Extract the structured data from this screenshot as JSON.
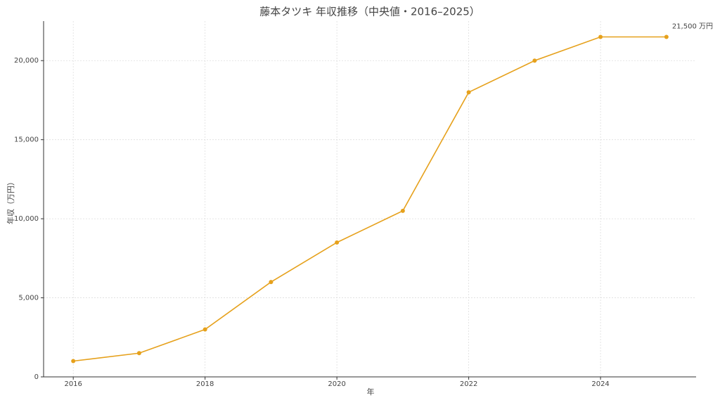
{
  "chart_data": {
    "type": "line",
    "title": "藤本タツキ 年収推移（中央値・2016–2025）",
    "x_label": "年",
    "y_label": "年収（万円）",
    "x": [
      2016,
      2017,
      2018,
      2019,
      2020,
      2021,
      2022,
      2023,
      2024,
      2025
    ],
    "series": [
      {
        "name": "年収",
        "color": "#e6a11c",
        "values": [
          1000,
          1500,
          3000,
          6000,
          8500,
          10500,
          18000,
          20000,
          21500,
          21500
        ]
      }
    ],
    "annotation": "21,500 万円",
    "xlim": [
      2015.55,
      2025.45
    ],
    "xticks": [
      2016,
      2018,
      2020,
      2022,
      2024
    ],
    "ylim": [
      0,
      22500
    ],
    "yticks": [
      0,
      {
        "value": 5000,
        "label": "5,000"
      },
      {
        "value": 10000,
        "label": "10,000"
      },
      {
        "value": 15000,
        "label": "15,000"
      },
      {
        "value": 20000,
        "label": "20,000"
      }
    ],
    "grid": true
  }
}
